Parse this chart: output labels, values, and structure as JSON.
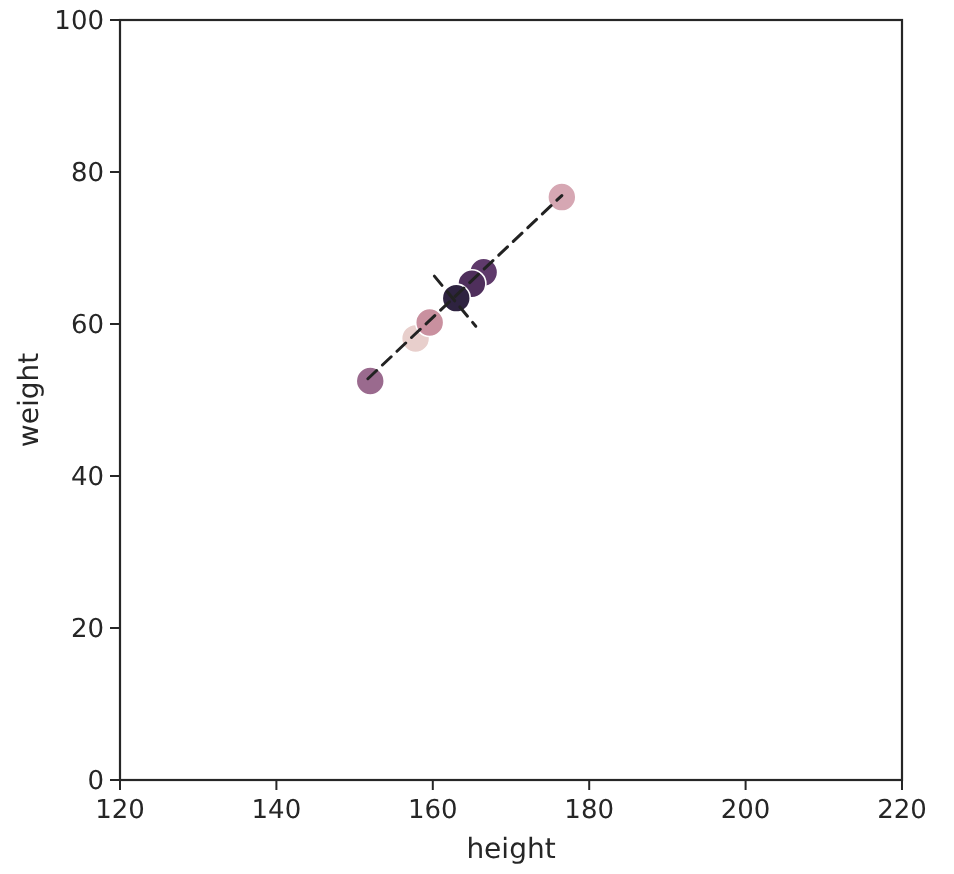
{
  "chart_data": {
    "type": "scatter",
    "xlabel": "height",
    "ylabel": "weight",
    "xlim": [
      120,
      220
    ],
    "ylim": [
      0,
      100
    ],
    "xticks": [
      120,
      140,
      160,
      180,
      200,
      220
    ],
    "yticks": [
      0,
      20,
      40,
      60,
      80,
      100
    ],
    "grid": false,
    "series": [
      {
        "marker": "circle",
        "x": [
          157.8,
          176.5,
          159.6,
          152.0,
          166.5,
          165.0,
          163.0
        ],
        "values": [
          58.1,
          76.7,
          60.2,
          52.5,
          66.8,
          65.3,
          63.4
        ],
        "colors": [
          "#e8cfcc",
          "#d6a7b3",
          "#c9909f",
          "#9a6a8e",
          "#5f3a6b",
          "#4f2f5c",
          "#2e2340"
        ]
      },
      {
        "type": "line",
        "x": [
          151.7,
          176.5
        ],
        "values": [
          52.8,
          76.9
        ],
        "color": "#222222",
        "line_style": "dashed"
      },
      {
        "type": "line",
        "x": [
          160.2,
          165.5
        ],
        "values": [
          66.3,
          59.7
        ],
        "color": "#222222",
        "line_style": "dashed"
      }
    ]
  }
}
